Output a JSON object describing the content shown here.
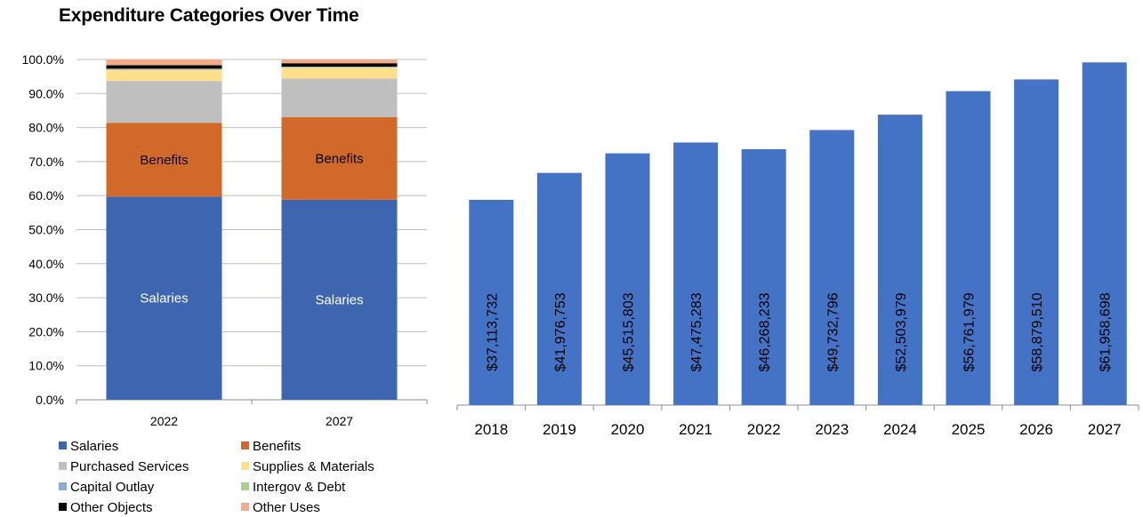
{
  "title": "Expenditure Categories Over Time",
  "chart_data": [
    {
      "type": "bar",
      "stacked": true,
      "orientation": "vertical",
      "categories": [
        "2022",
        "2027"
      ],
      "series": [
        {
          "name": "Salaries",
          "color": "#3d65b0",
          "values": [
            59.7,
            58.8
          ],
          "label": "Salaries"
        },
        {
          "name": "Benefits",
          "color": "#d0692a",
          "values": [
            21.7,
            24.3
          ],
          "label": "Benefits"
        },
        {
          "name": "Purchased Services",
          "color": "#bfbfbf",
          "values": [
            12.3,
            11.3
          ],
          "label": ""
        },
        {
          "name": "Supplies & Materials",
          "color": "#ffe08a",
          "values": [
            3.3,
            3.2
          ],
          "label": ""
        },
        {
          "name": "Capital Outlay",
          "color": "#8eaadb",
          "values": [
            0.2,
            0.2
          ],
          "label": ""
        },
        {
          "name": "Intergov & Debt",
          "color": "#a9d18e",
          "values": [
            0.1,
            0.1
          ],
          "label": ""
        },
        {
          "name": "Other Objects",
          "color": "#000000",
          "values": [
            1.0,
            1.0
          ],
          "label": ""
        },
        {
          "name": "Other Uses",
          "color": "#f4a98a",
          "values": [
            1.7,
            1.1
          ],
          "label": ""
        }
      ],
      "ylim": [
        0,
        100
      ],
      "yticks": [
        "0.0%",
        "10.0%",
        "20.0%",
        "30.0%",
        "40.0%",
        "50.0%",
        "60.0%",
        "70.0%",
        "80.0%",
        "90.0%",
        "100.0%"
      ],
      "grid": true,
      "legend": "bottom"
    },
    {
      "type": "bar",
      "orientation": "vertical",
      "color": "#4472c4",
      "categories": [
        "2018",
        "2019",
        "2020",
        "2021",
        "2022",
        "2023",
        "2024",
        "2025",
        "2026",
        "2027"
      ],
      "values": [
        37113732,
        41976753,
        45515803,
        47475283,
        46268233,
        49732796,
        52503979,
        56761979,
        58879510,
        61958698
      ],
      "data_labels": [
        "$37,113,732",
        "$41,976,753",
        "$45,515,803",
        "$47,475,283",
        "$46,268,233",
        "$49,732,796",
        "$52,503,979",
        "$56,761,979",
        "$58,879,510",
        "$61,958,698"
      ],
      "ylim": [
        0,
        62000000
      ],
      "grid": false,
      "legend": "none"
    }
  ]
}
